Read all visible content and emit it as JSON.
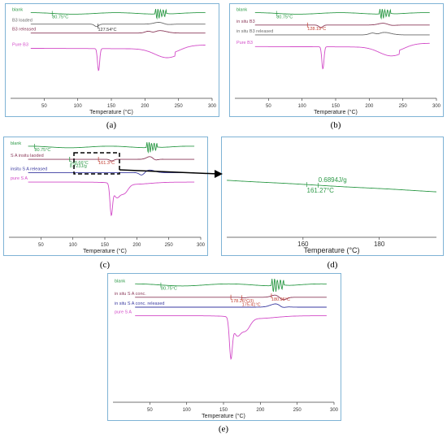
{
  "captions": [
    "(a)",
    "(b)",
    "(c)",
    "(d)",
    "(e)"
  ],
  "chart_data": [
    {
      "id": "a",
      "type": "line",
      "xlabel": "Temperature (°C)",
      "xlim": [
        0,
        300
      ],
      "xticks": [
        "50",
        "100",
        "150",
        "200",
        "250",
        "300"
      ],
      "series": [
        {
          "name": "blank",
          "color": "#2e9a48",
          "offset": 0.95
        },
        {
          "name": "B3 loaded",
          "color": "#6a6a6a",
          "offset": 0.83
        },
        {
          "name": "B3 released",
          "color": "#8a3a5a",
          "offset": 0.73
        },
        {
          "name": "Pure B3",
          "color": "#d24bc8",
          "offset": 0.56
        }
      ],
      "annotations": [
        {
          "text": "80.75°C",
          "color": "#2e9a48",
          "x": 62,
          "series": 0
        },
        {
          "text": "127.54°C",
          "color": "#333333",
          "x": 130,
          "series": 1
        }
      ]
    },
    {
      "id": "b",
      "type": "line",
      "xlabel": "Temperature (°C)",
      "xlim": [
        0,
        300
      ],
      "xticks": [
        "50",
        "100",
        "150",
        "200",
        "250",
        "300"
      ],
      "series": [
        {
          "name": "blank",
          "color": "#2e9a48",
          "offset": 0.95
        },
        {
          "name": "in situ B3",
          "color": "#8a3a5a",
          "offset": 0.82
        },
        {
          "name": "in situ B3 released",
          "color": "#6a6a6a",
          "offset": 0.71
        },
        {
          "name": "Pure B3",
          "color": "#d24bc8",
          "offset": 0.58
        }
      ],
      "annotations": [
        {
          "text": "80.75°C",
          "color": "#2e9a48",
          "x": 62,
          "series": 0
        },
        {
          "text": "128.19°C",
          "color": "#c0392b",
          "x": 108,
          "series": 1
        }
      ]
    },
    {
      "id": "c",
      "type": "line",
      "xlabel": "Temperature (°C)",
      "xlim": [
        0,
        300
      ],
      "xticks": [
        "50",
        "100",
        "150",
        "200",
        "250",
        "300"
      ],
      "series": [
        {
          "name": "blank",
          "color": "#2e9a48",
          "offset": 0.95
        },
        {
          "name": "S A insitu laoded",
          "color": "#8a3a5a",
          "offset": 0.82
        },
        {
          "name": "insitu S A  released",
          "color": "#3a3aa0",
          "offset": 0.68
        },
        {
          "name": "pure S A",
          "color": "#d24bc8",
          "offset": 0.58
        }
      ],
      "annotations": [
        {
          "text": "80.75°C",
          "color": "#2e9a48",
          "x": 40,
          "series": 0
        },
        {
          "text": "148.66°C",
          "color": "#2e9a48",
          "x": 95,
          "series": 1
        },
        {
          "text": "8.723J/g",
          "color": "#2e9a48",
          "x": 95,
          "series": 1
        },
        {
          "text": "161.3°C",
          "color": "#c0392b",
          "x": 140,
          "series": 1
        }
      ]
    },
    {
      "id": "d",
      "type": "line",
      "xlabel": "Temperature (°C)",
      "xlim": [
        140,
        195
      ],
      "xticks": [
        "160",
        "180"
      ],
      "series": [
        {
          "name": "",
          "color": "#2e9a48",
          "offset": 0.6
        }
      ],
      "annotations": [
        {
          "text": "0.6894J/g",
          "color": "#2e9a48",
          "x": 164,
          "series": 0
        },
        {
          "text": "161.27°C",
          "color": "#2e9a48",
          "x": 161,
          "series": 0
        }
      ]
    },
    {
      "id": "e",
      "type": "line",
      "xlabel": "Temperature (°C)",
      "xlim": [
        0,
        300
      ],
      "xticks": [
        "50",
        "100",
        "150",
        "200",
        "250",
        "300"
      ],
      "series": [
        {
          "name": "blank",
          "color": "#2e9a48",
          "offset": 0.95
        },
        {
          "name": "in situ S A conc.",
          "color": "#8a3a5a",
          "offset": 0.85
        },
        {
          "name": "in situ S A conc. released",
          "color": "#3a3aa0",
          "offset": 0.77
        },
        {
          "name": "pure S A",
          "color": "#d24bc8",
          "offset": 0.7
        }
      ],
      "annotations": [
        {
          "text": "80.75°C",
          "color": "#2e9a48",
          "x": 65,
          "series": 0
        },
        {
          "text": "178.26°C(I)",
          "color": "#c0392b",
          "x": 160,
          "series": 1
        },
        {
          "text": "175.41°C",
          "color": "#c0392b",
          "x": 175,
          "series": 1
        },
        {
          "text": "180.96°C",
          "color": "#c0392b",
          "x": 215,
          "series": 1
        }
      ]
    }
  ]
}
